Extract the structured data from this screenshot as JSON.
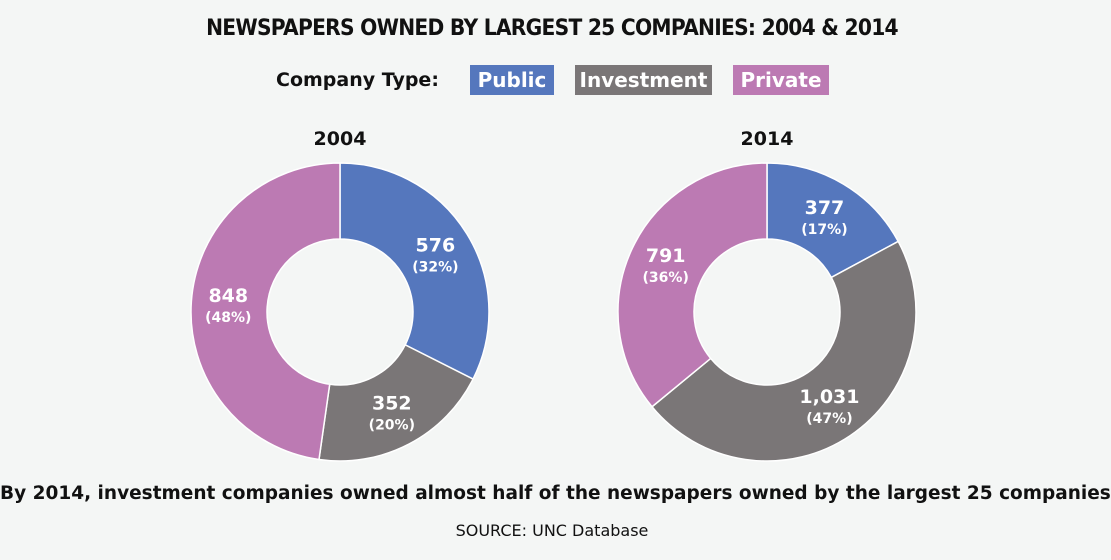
{
  "title": "NEWSPAPERS OWNED BY LARGEST 25 COMPANIES: 2004 & 2014",
  "legend": {
    "label": "Company Type:",
    "items": [
      {
        "name": "Public",
        "color": "#5577bd"
      },
      {
        "name": "Investment",
        "color": "#7a7677"
      },
      {
        "name": "Private",
        "color": "#bc7ab3"
      }
    ]
  },
  "chart_data": [
    {
      "type": "pie",
      "donut": true,
      "title": "2004",
      "categories": [
        "Public",
        "Investment",
        "Private"
      ],
      "values": [
        576,
        352,
        848
      ],
      "value_labels": [
        "576",
        "352",
        "848"
      ],
      "percent_labels": [
        "(32%)",
        "(20%)",
        "(48%)"
      ],
      "colors": [
        "#5577bd",
        "#7a7677",
        "#bc7ab3"
      ]
    },
    {
      "type": "pie",
      "donut": true,
      "title": "2014",
      "categories": [
        "Public",
        "Investment",
        "Private"
      ],
      "values": [
        377,
        1031,
        791
      ],
      "value_labels": [
        "377",
        "1,031",
        "791"
      ],
      "percent_labels": [
        "(17%)",
        "(47%)",
        "(36%)"
      ],
      "colors": [
        "#5577bd",
        "#7a7677",
        "#bc7ab3"
      ]
    }
  ],
  "caption": "By 2014, investment companies owned almost half of the newspapers owned by the largest 25 companies",
  "source": "SOURCE: UNC Database"
}
